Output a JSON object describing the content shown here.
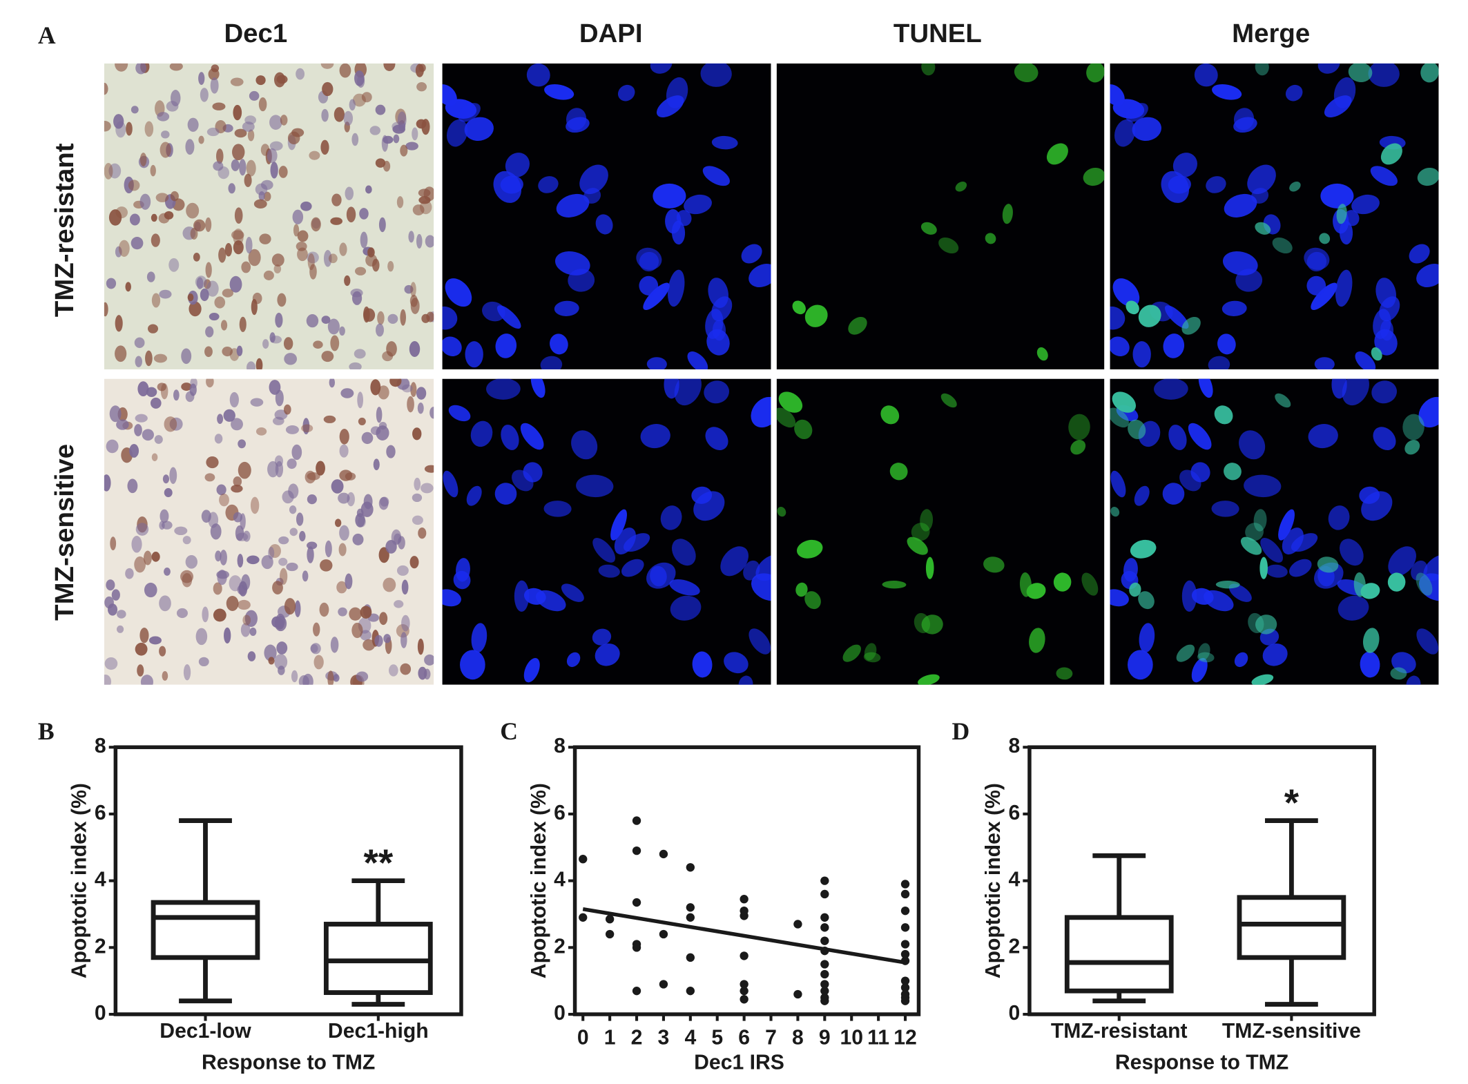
{
  "figure": {
    "panel_labels": [
      "A",
      "B",
      "C",
      "D"
    ],
    "columns": [
      "Dec1",
      "DAPI",
      "TUNEL",
      "Merge"
    ],
    "rows": [
      "TMZ-resistant",
      "TMZ-sensitive"
    ]
  },
  "chart_data": [
    {
      "type": "box",
      "y_label": "Apoptotic index (%)",
      "x_label": "Response to TMZ",
      "categories": [
        "Dec1-low",
        "Dec1-high"
      ],
      "whisker_low": [
        0.4,
        0.3
      ],
      "q1": [
        1.7,
        0.65
      ],
      "median": [
        2.9,
        1.6
      ],
      "q3": [
        3.35,
        2.7
      ],
      "whisker_high": [
        5.8,
        4.0
      ],
      "annotations": [
        {
          "x": "Dec1-high",
          "text": "**"
        }
      ],
      "ylim": [
        0,
        8
      ],
      "yticks": [
        0,
        2,
        4,
        6,
        8
      ],
      "color": "#1a1a1a"
    },
    {
      "type": "scatter",
      "y_label": "Apoptotic index (%)",
      "x_label": "Dec1 IRS",
      "x": [
        0,
        0,
        1,
        1,
        2,
        2,
        2,
        2,
        2,
        2,
        3,
        3,
        3,
        4,
        4,
        4,
        4,
        4,
        6,
        6,
        6,
        6,
        6,
        6,
        6,
        8,
        8,
        9,
        9,
        9,
        9,
        9,
        9,
        9,
        9,
        9,
        9,
        9,
        9,
        12,
        12,
        12,
        12,
        12,
        12,
        12,
        12,
        12,
        12,
        12,
        12
      ],
      "y": [
        4.65,
        2.9,
        2.85,
        2.4,
        5.8,
        4.9,
        3.35,
        2.1,
        2.0,
        0.7,
        4.8,
        2.4,
        0.9,
        4.4,
        3.2,
        2.9,
        1.7,
        0.7,
        3.45,
        3.1,
        2.95,
        1.75,
        0.9,
        0.7,
        0.45,
        2.7,
        0.6,
        4.0,
        3.6,
        2.9,
        2.6,
        2.2,
        1.9,
        1.5,
        1.2,
        0.9,
        0.7,
        0.5,
        0.4,
        3.9,
        3.6,
        3.1,
        2.6,
        2.1,
        1.8,
        1.6,
        1.0,
        0.8,
        0.6,
        0.5,
        0.4
      ],
      "fit_line": {
        "x": [
          0,
          12
        ],
        "y": [
          3.15,
          1.55
        ]
      },
      "xlim": [
        -0.3,
        12.5
      ],
      "xticks": [
        0,
        1,
        2,
        3,
        4,
        5,
        6,
        7,
        8,
        9,
        10,
        11,
        12
      ],
      "ylim": [
        0,
        8
      ],
      "yticks": [
        0,
        2,
        4,
        6,
        8
      ],
      "color": "#1a1a1a"
    },
    {
      "type": "box",
      "y_label": "Apoptotic index (%)",
      "x_label": "Response to TMZ",
      "categories": [
        "TMZ-resistant",
        "TMZ-sensitive"
      ],
      "whisker_low": [
        0.4,
        0.3
      ],
      "q1": [
        0.7,
        1.7
      ],
      "median": [
        1.55,
        2.7
      ],
      "q3": [
        2.9,
        3.5
      ],
      "whisker_high": [
        4.75,
        5.8
      ],
      "annotations": [
        {
          "x": "TMZ-sensitive",
          "text": "*"
        }
      ],
      "ylim": [
        0,
        8
      ],
      "yticks": [
        0,
        2,
        4,
        6,
        8
      ],
      "color": "#1a1a1a"
    }
  ]
}
